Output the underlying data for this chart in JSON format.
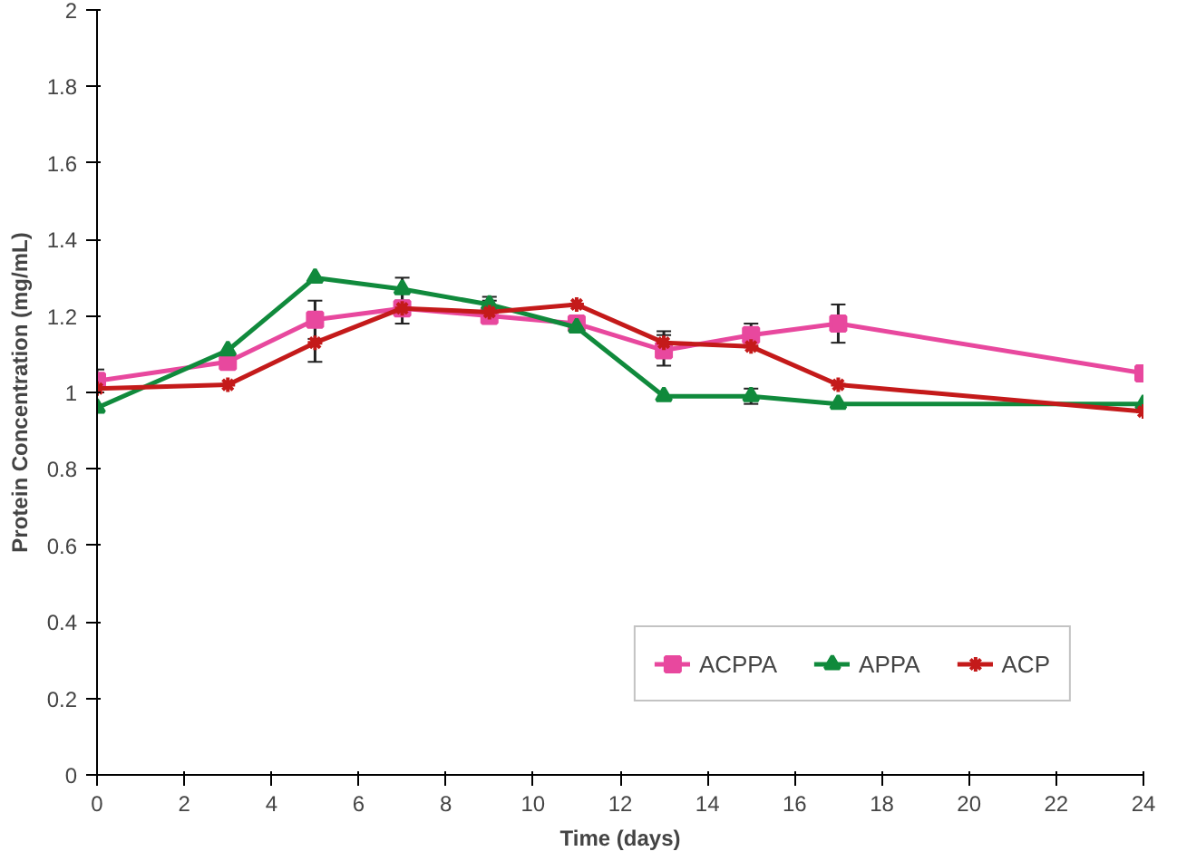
{
  "chart_data": {
    "type": "line",
    "xlabel": "Time (days)",
    "ylabel": "Protein Concentration (mg/mL)",
    "xlim": [
      0,
      24
    ],
    "xticks": [
      0,
      2,
      4,
      6,
      8,
      10,
      12,
      14,
      16,
      18,
      20,
      22,
      24
    ],
    "ylim": [
      0,
      2
    ],
    "yticks": [
      0,
      0.2,
      0.4,
      0.6,
      0.8,
      1,
      1.2,
      1.4,
      1.6,
      1.8,
      2
    ],
    "x": [
      0,
      3,
      5,
      7,
      9,
      11,
      13,
      15,
      17,
      24
    ],
    "grid": false,
    "legend": "bottom right",
    "line_style": "solid",
    "series": [
      {
        "name": "ACPPA",
        "color": "#e8489e",
        "marker": "square",
        "values": [
          1.03,
          1.08,
          1.19,
          1.22,
          1.2,
          1.18,
          1.11,
          1.15,
          1.18,
          1.05
        ],
        "errors": [
          0.03,
          null,
          0.05,
          null,
          null,
          null,
          0.04,
          0.03,
          0.05,
          null
        ]
      },
      {
        "name": "APPA",
        "color": "#108a3c",
        "marker": "triangle",
        "values": [
          0.96,
          1.11,
          1.3,
          1.27,
          1.23,
          1.17,
          0.99,
          0.99,
          0.97,
          0.97
        ],
        "errors": [
          null,
          null,
          null,
          0.03,
          0.02,
          null,
          null,
          0.02,
          null,
          null
        ]
      },
      {
        "name": "ACP",
        "color": "#c41a1a",
        "marker": "cross",
        "values": [
          1.01,
          1.02,
          1.13,
          1.22,
          1.21,
          1.23,
          1.13,
          1.12,
          1.02,
          0.95
        ],
        "errors": [
          null,
          null,
          0.05,
          0.04,
          0.03,
          null,
          0.03,
          null,
          null,
          null
        ]
      }
    ]
  }
}
